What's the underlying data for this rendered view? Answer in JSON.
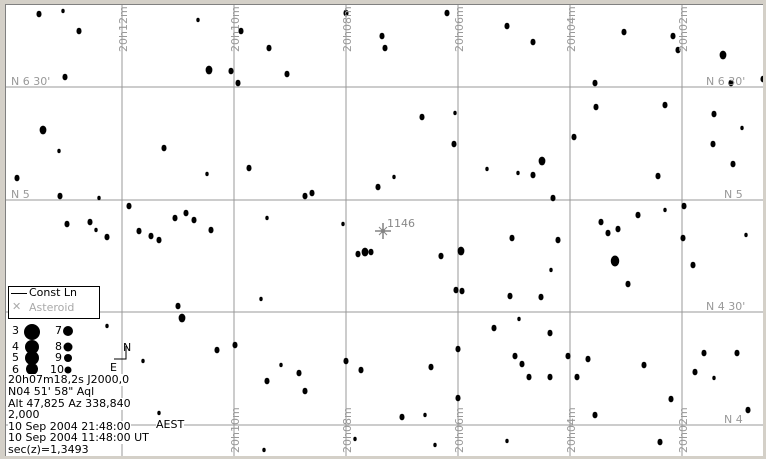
{
  "ra_labels": [
    "20h12m",
    "20h10m",
    "20h08m",
    "20h06m",
    "20h04m",
    "20h02m"
  ],
  "dec_labels": {
    "top": "N 6 30'",
    "middle_left": "N 5",
    "middle_right": "N 5",
    "lower_right": "N 4 30'",
    "bottom_right": "N 4"
  },
  "legend": {
    "const_line": "Const Ln",
    "asteroid": "Asteroid"
  },
  "magnitudes": [
    "3",
    "4",
    "5",
    "6",
    "7",
    "8",
    "9",
    "10"
  ],
  "compass": {
    "north": "N",
    "east": "E"
  },
  "asteroid_label": "1146",
  "timezone_label": "AEST",
  "info": {
    "ra": "20h07m18,2s  J2000,0",
    "dec": "N04 51' 58\"      Aql",
    "altaz": "Alt 47,825  Az 338,840",
    "scale": "2,000",
    "local_time": "10 Sep 2004 21:48:00",
    "ut_time": "10 Sep 2004 11:48:00 UT",
    "airmass": "sec(z)=1,3493"
  },
  "colors": {
    "grid": "#999999",
    "star": "#000000",
    "asteroid": "#888888"
  }
}
